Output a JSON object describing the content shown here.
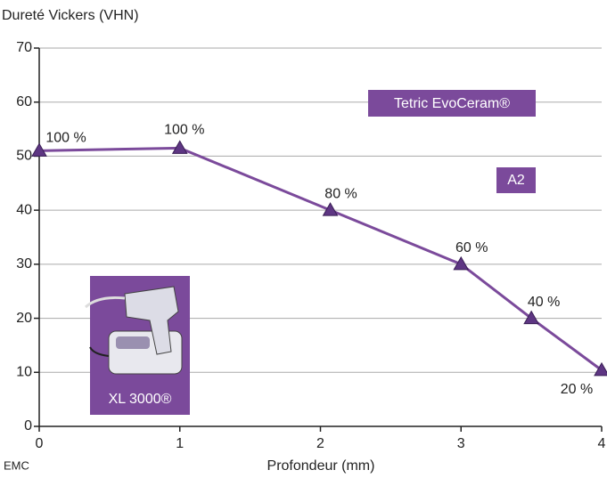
{
  "chart_data": {
    "type": "line",
    "y_axis_label": "Dureté Vickers (VHN)",
    "x_axis_label": "Profondeur (mm)",
    "x": [
      0,
      1,
      2.07,
      3,
      3.5,
      4
    ],
    "series": [
      {
        "name": "Tetric EvoCeram®",
        "color": "#7b4a9b",
        "values": [
          51,
          51.5,
          40,
          30,
          20,
          10.4
        ]
      }
    ],
    "point_labels": [
      "100 %",
      "100 %",
      "80 %",
      "60 %",
      "40 %",
      "20 %"
    ],
    "annotations": [
      "A2",
      "XL 3000®",
      "EMC"
    ],
    "xlim": [
      0,
      4
    ],
    "xticks": [
      0,
      1,
      2,
      3,
      4
    ],
    "ylim": [
      0,
      70
    ],
    "yticks": [
      0,
      10,
      20,
      30,
      40,
      50,
      60,
      70
    ],
    "grid": true
  }
}
